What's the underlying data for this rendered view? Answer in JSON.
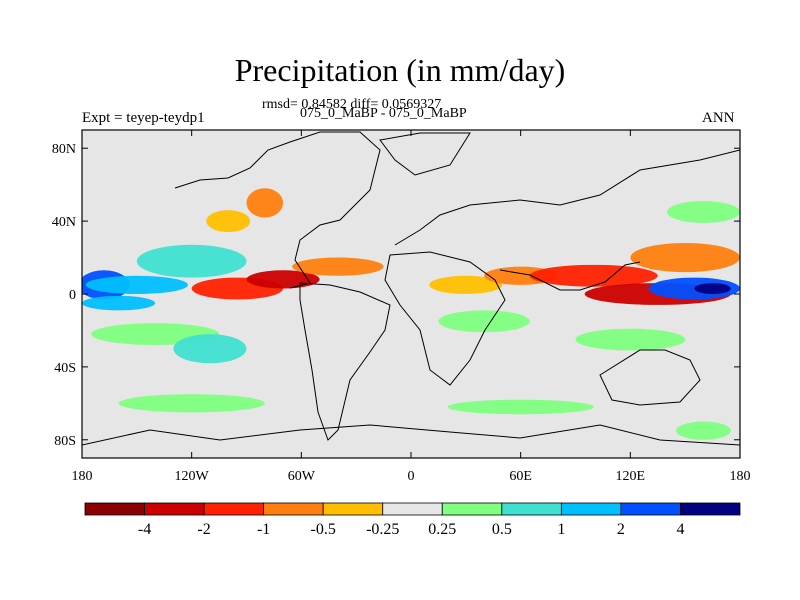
{
  "title": "Precipitation (in mm/day)",
  "stats_line": "rmsd= 0.84582  diff= 0.0569327",
  "comparison": "075_0_MaBP - 075_0_MaBP",
  "experiment_label": "Expt = teyep-teydp1",
  "season": "ANN",
  "map": {
    "projection": "cylindrical equidistant",
    "lon_range": [
      -180,
      180
    ],
    "lat_range": [
      -90,
      90
    ],
    "y_ticks": [
      {
        "lat": 80,
        "label": "80N"
      },
      {
        "lat": 40,
        "label": "40N"
      },
      {
        "lat": 0,
        "label": "0"
      },
      {
        "lat": -40,
        "label": "40S"
      },
      {
        "lat": -80,
        "label": "80S"
      }
    ],
    "x_ticks": [
      {
        "lon": -180,
        "label": "180"
      },
      {
        "lon": -120,
        "label": "120W"
      },
      {
        "lon": -60,
        "label": "60W"
      },
      {
        "lon": 0,
        "label": "0"
      },
      {
        "lon": 60,
        "label": "60E"
      },
      {
        "lon": 120,
        "label": "120E"
      },
      {
        "lon": 180,
        "label": "180"
      }
    ],
    "background_color": "#e6e6e6"
  },
  "colorbar": {
    "colors": [
      "#8b0000",
      "#cc0000",
      "#ff2200",
      "#ff7f0e",
      "#ffbf00",
      "#e6e6e6",
      "#80ff80",
      "#40e0d0",
      "#00bfff",
      "#0050ff",
      "#000080"
    ],
    "labels": [
      "-4",
      "-2",
      "-1",
      "-0.5",
      "-0.25",
      "0.25",
      "0.5",
      "1",
      "2",
      "4"
    ]
  },
  "anomaly_regions": [
    {
      "lon": -168,
      "lat": 5,
      "rx": 14,
      "ry": 8,
      "color": "#0050ff"
    },
    {
      "lon": -150,
      "lat": 5,
      "rx": 28,
      "ry": 5,
      "color": "#00bfff"
    },
    {
      "lon": -120,
      "lat": 18,
      "rx": 30,
      "ry": 9,
      "color": "#40e0d0"
    },
    {
      "lon": -95,
      "lat": 3,
      "rx": 25,
      "ry": 6,
      "color": "#ff2200"
    },
    {
      "lon": -70,
      "lat": 8,
      "rx": 20,
      "ry": 5,
      "color": "#cc0000"
    },
    {
      "lon": -40,
      "lat": 15,
      "rx": 25,
      "ry": 5,
      "color": "#ff7f0e"
    },
    {
      "lon": -160,
      "lat": -5,
      "rx": 20,
      "ry": 4,
      "color": "#00bfff"
    },
    {
      "lon": -140,
      "lat": -22,
      "rx": 35,
      "ry": 6,
      "color": "#80ff80"
    },
    {
      "lon": -110,
      "lat": -30,
      "rx": 20,
      "ry": 8,
      "color": "#40e0d0"
    },
    {
      "lon": -100,
      "lat": 40,
      "rx": 12,
      "ry": 6,
      "color": "#ffbf00"
    },
    {
      "lon": -80,
      "lat": 50,
      "rx": 10,
      "ry": 8,
      "color": "#ff7f0e"
    },
    {
      "lon": 30,
      "lat": 5,
      "rx": 20,
      "ry": 5,
      "color": "#ffbf00"
    },
    {
      "lon": 60,
      "lat": 10,
      "rx": 20,
      "ry": 5,
      "color": "#ff7f0e"
    },
    {
      "lon": 40,
      "lat": -15,
      "rx": 25,
      "ry": 6,
      "color": "#80ff80"
    },
    {
      "lon": 100,
      "lat": 10,
      "rx": 35,
      "ry": 6,
      "color": "#ff2200"
    },
    {
      "lon": 135,
      "lat": 0,
      "rx": 40,
      "ry": 6,
      "color": "#cc0000"
    },
    {
      "lon": 150,
      "lat": 20,
      "rx": 30,
      "ry": 8,
      "color": "#ff7f0e"
    },
    {
      "lon": 155,
      "lat": 3,
      "rx": 25,
      "ry": 6,
      "color": "#0050ff"
    },
    {
      "lon": 165,
      "lat": 3,
      "rx": 10,
      "ry": 3,
      "color": "#000080"
    },
    {
      "lon": 120,
      "lat": -25,
      "rx": 30,
      "ry": 6,
      "color": "#80ff80"
    },
    {
      "lon": 160,
      "lat": 45,
      "rx": 20,
      "ry": 6,
      "color": "#80ff80"
    },
    {
      "lon": -120,
      "lat": -60,
      "rx": 40,
      "ry": 5,
      "color": "#80ff80"
    },
    {
      "lon": 60,
      "lat": -62,
      "rx": 40,
      "ry": 4,
      "color": "#80ff80"
    },
    {
      "lon": 160,
      "lat": -75,
      "rx": 15,
      "ry": 5,
      "color": "#80ff80"
    }
  ]
}
